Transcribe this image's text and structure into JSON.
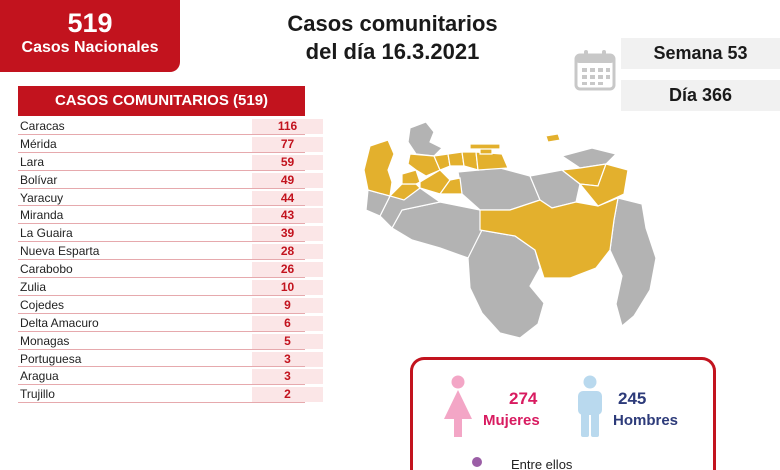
{
  "national": {
    "count": "519",
    "label": "Casos Nacionales"
  },
  "title": {
    "line1": "Casos comunitarios",
    "line2": "del día 16.3.2021"
  },
  "info": {
    "week": "Semana 53",
    "day": "Día 366"
  },
  "table": {
    "header": "CASOS COMUNITARIOS (519)",
    "rows": [
      {
        "state": "Caracas",
        "value": "116"
      },
      {
        "state": "Mérida",
        "value": "77"
      },
      {
        "state": "Lara",
        "value": "59"
      },
      {
        "state": "Bolívar",
        "value": "49"
      },
      {
        "state": "Yaracuy",
        "value": "44"
      },
      {
        "state": "Miranda",
        "value": "43"
      },
      {
        "state": "La Guaira",
        "value": "39"
      },
      {
        "state": "Nueva Esparta",
        "value": "28"
      },
      {
        "state": "Carabobo",
        "value": "26"
      },
      {
        "state": "Zulia",
        "value": "10"
      },
      {
        "state": "Cojedes",
        "value": "9"
      },
      {
        "state": "Delta Amacuro",
        "value": "6"
      },
      {
        "state": "Monagas",
        "value": "5"
      },
      {
        "state": "Portuguesa",
        "value": "3"
      },
      {
        "state": "Aragua",
        "value": "3"
      },
      {
        "state": "Trujillo",
        "value": "2"
      }
    ]
  },
  "gender": {
    "female": {
      "count": "274",
      "label": "Mujeres"
    },
    "male": {
      "count": "245",
      "label": "Hombres"
    }
  },
  "note": {
    "text": "Entre ellos"
  },
  "colors": {
    "brand_red": "#c2131e",
    "map_highlight": "#e3b02d",
    "map_base": "#b3b3b3",
    "female": "#d81b60",
    "male": "#2d3b7a"
  },
  "icons": {
    "calendar": "calendar-icon",
    "female": "female-figure-icon",
    "male": "male-figure-icon"
  }
}
